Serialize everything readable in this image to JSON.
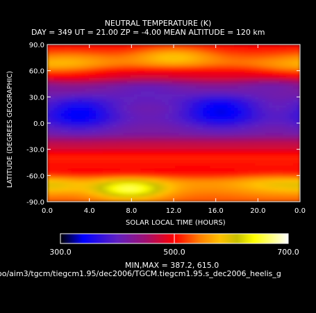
{
  "chart_data": {
    "type": "heatmap",
    "title": "NEUTRAL TEMPERATURE (K)",
    "subtitle": "DAY = 349   UT = 21.00   ZP =   -4.00   MEAN ALTITUDE = 120 km",
    "xlabel": "SOLAR LOCAL TIME (HOURS)",
    "ylabel": "LATITUDE (DEGREES GEOGRAPHIC)",
    "x_ticks": [
      "0.0",
      "4.0",
      "8.0",
      "12.0",
      "16.0",
      "20.0",
      "0.0"
    ],
    "y_ticks": [
      "90.0",
      "60.0",
      "30.0",
      "0.0",
      "-30.0",
      "-60.0",
      "-90.0"
    ],
    "xlim": [
      0,
      24
    ],
    "ylim": [
      -90,
      90
    ],
    "colorbar": {
      "ticks": [
        "300.0",
        "500.0",
        "700.0"
      ],
      "range": [
        300,
        700
      ],
      "stops": [
        {
          "value": 300,
          "color": "#000000"
        },
        {
          "value": 340,
          "color": "#0000ff"
        },
        {
          "value": 400,
          "color": "#6020c0"
        },
        {
          "value": 450,
          "color": "#a01070"
        },
        {
          "value": 500,
          "color": "#ff0000"
        },
        {
          "value": 545,
          "color": "#ff8000"
        },
        {
          "value": 580,
          "color": "#ffc000"
        },
        {
          "value": 610,
          "color": "#c8c000"
        },
        {
          "value": 640,
          "color": "#ffff00"
        },
        {
          "value": 700,
          "color": "#ffffff"
        }
      ]
    },
    "field": {
      "base": [
        {
          "lat": -90,
          "value": 530
        },
        {
          "lat": -70,
          "value": 555
        },
        {
          "lat": -55,
          "value": 500
        },
        {
          "lat": -40,
          "value": 510
        },
        {
          "lat": -25,
          "value": 470
        },
        {
          "lat": -10,
          "value": 420
        },
        {
          "lat": 5,
          "value": 410
        },
        {
          "lat": 20,
          "value": 420
        },
        {
          "lat": 40,
          "value": 445
        },
        {
          "lat": 55,
          "value": 490
        },
        {
          "lat": 70,
          "value": 535
        },
        {
          "lat": 90,
          "value": 500
        }
      ],
      "blobs": [
        {
          "slt": 3.0,
          "lat": 12,
          "slt_width": 2.5,
          "lat_width": 14,
          "amp": -75
        },
        {
          "slt": 16.5,
          "lat": 15,
          "slt_width": 2.6,
          "lat_width": 14,
          "amp": -80
        },
        {
          "slt": 9.5,
          "lat": 38,
          "slt_width": 3.5,
          "lat_width": 10,
          "amp": -40
        },
        {
          "slt": 21.5,
          "lat": 42,
          "slt_width": 2.5,
          "lat_width": 9,
          "amp": -30
        },
        {
          "slt": 12.0,
          "lat": 77,
          "slt_width": 2.6,
          "lat_width": 8,
          "amp": 55
        },
        {
          "slt": 2.0,
          "lat": 68,
          "slt_width": 2.8,
          "lat_width": 10,
          "amp": 35
        },
        {
          "slt": 22.5,
          "lat": 62,
          "slt_width": 2.5,
          "lat_width": 7,
          "amp": 20
        },
        {
          "slt": 7.8,
          "lat": -76,
          "slt_width": 2.4,
          "lat_width": 8,
          "amp": 110
        },
        {
          "slt": 21.5,
          "lat": -70,
          "slt_width": 2.5,
          "lat_width": 9,
          "amp": 30
        },
        {
          "slt": 1.0,
          "lat": -72,
          "slt_width": 1.8,
          "lat_width": 7,
          "amp": 25
        }
      ],
      "min": 387.2,
      "max": 615.0
    },
    "minmax_label": "MIN,MAX =        387.2,       615.0",
    "file_path": "oo/aim3/tgcm/tiegcm1.95/dec2006/TGCM.tiegcm1.95.s_dec2006_heelis_g"
  }
}
